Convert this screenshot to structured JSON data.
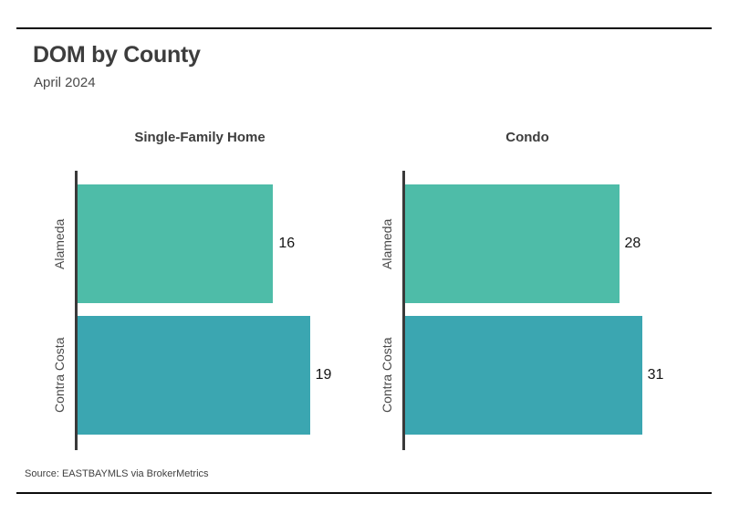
{
  "header": {
    "title": "DOM by County",
    "subtitle": "April 2024"
  },
  "source": {
    "label": "Source:  EASTBAYMLS via BrokerMetrics"
  },
  "colors": {
    "alameda_bar": "#4EBCA8",
    "contra_costa_bar": "#3BA6B1",
    "axis": "#3a3a3a",
    "rule": "#0c0c0c",
    "title_text": "#3d3d3d",
    "label_text": "#4a4a4a",
    "value_text": "#141414"
  },
  "chart_data": [
    {
      "type": "bar",
      "orientation": "horizontal",
      "title": "Single-Family Home",
      "categories": [
        "Alameda",
        "Contra Costa"
      ],
      "values": [
        16,
        19
      ],
      "data_labels": [
        16,
        19
      ],
      "xlim": [
        0,
        20
      ],
      "bar_colors": [
        "#4EBCA8",
        "#3BA6B1"
      ],
      "grid": false,
      "legend": false
    },
    {
      "type": "bar",
      "orientation": "horizontal",
      "title": "Condo",
      "categories": [
        "Alameda",
        "Contra Costa"
      ],
      "values": [
        28,
        31
      ],
      "data_labels": [
        28,
        31
      ],
      "xlim": [
        0,
        32
      ],
      "bar_colors": [
        "#4EBCA8",
        "#3BA6B1"
      ],
      "grid": false,
      "legend": false
    }
  ]
}
